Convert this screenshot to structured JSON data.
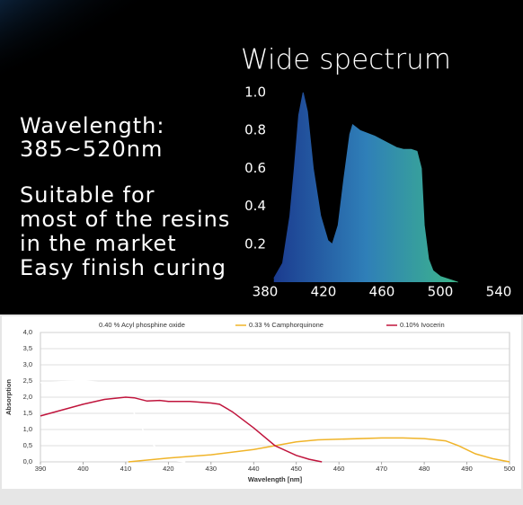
{
  "banner": {
    "lines": [
      "Wavelength:",
      "385~520nm",
      "Suitable for",
      "most of the resins",
      "in the market",
      "Easy finish curing"
    ]
  },
  "chart_data": [
    {
      "type": "area",
      "title": "Wide spectrum",
      "x": [
        386,
        392,
        397,
        400,
        403,
        406,
        409,
        413,
        418,
        423,
        426,
        430,
        434,
        438,
        440,
        445,
        455,
        465,
        470,
        475,
        480,
        484,
        487,
        489,
        492,
        495,
        500,
        512
      ],
      "series": [
        {
          "gradient": [
            "#1b3b8f",
            "#2f7fb8",
            "#3cb58a"
          ],
          "values": [
            0.02,
            0.1,
            0.35,
            0.6,
            0.88,
            1.0,
            0.9,
            0.6,
            0.35,
            0.22,
            0.2,
            0.3,
            0.55,
            0.78,
            0.83,
            0.8,
            0.77,
            0.73,
            0.71,
            0.7,
            0.7,
            0.69,
            0.6,
            0.3,
            0.12,
            0.06,
            0.03,
            0
          ]
        }
      ],
      "xlim": [
        380,
        540
      ],
      "xticks": [
        380,
        420,
        460,
        500,
        540
      ],
      "ylim": [
        0,
        1
      ],
      "yticks": [
        0.2,
        0.4,
        0.6,
        0.8,
        {
          "value": 1,
          "label": "1.0"
        }
      ],
      "grid": false
    },
    {
      "type": "line",
      "xlabel": "Wavelength  [nm]",
      "ylabel": "Absorption",
      "series": [
        {
          "name": "0.40 % Acyl phosphine oxide",
          "color": "#ffffff",
          "x": [
            390,
            395,
            400,
            405,
            408,
            410,
            412,
            414,
            416,
            418,
            420,
            422,
            424
          ],
          "values": [
            2.45,
            2.48,
            2.5,
            2.45,
            2.3,
            2.0,
            1.5,
            1.0,
            0.6,
            0.3,
            0.12,
            0.03,
            0
          ]
        },
        {
          "name": "0.33 % Camphorquinone",
          "color": "#f0b429",
          "x": [
            410.6,
            420,
            430,
            440,
            445,
            450,
            455,
            460,
            470,
            475,
            480,
            485,
            488,
            492,
            496,
            500
          ],
          "values": [
            0,
            0.12,
            0.22,
            0.38,
            0.5,
            0.62,
            0.68,
            0.7,
            0.74,
            0.74,
            0.72,
            0.65,
            0.5,
            0.25,
            0.1,
            0
          ]
        },
        {
          "name": "0.10% Ivocerin",
          "color": "#c0143c",
          "x": [
            390,
            395,
            400,
            405,
            410,
            412,
            415,
            418,
            420,
            425,
            430,
            432,
            435,
            440,
            445,
            450,
            453,
            456
          ],
          "values": [
            1.42,
            1.6,
            1.78,
            1.93,
            2.0,
            1.98,
            1.88,
            1.9,
            1.87,
            1.87,
            1.82,
            1.78,
            1.55,
            1.05,
            0.5,
            0.2,
            0.08,
            0
          ]
        }
      ],
      "xlim": [
        390,
        500
      ],
      "xticks": [
        390,
        400,
        410,
        420,
        430,
        440,
        450,
        460,
        470,
        480,
        490,
        500
      ],
      "ylim": [
        0,
        4
      ],
      "yticks": [
        {
          "value": 0,
          "label": "0,0"
        },
        {
          "value": 0.5,
          "label": "0,5"
        },
        {
          "value": 1,
          "label": "1,0"
        },
        {
          "value": 1.5,
          "label": "1,5"
        },
        {
          "value": 2,
          "label": "2,0"
        },
        {
          "value": 2.5,
          "label": "2,5"
        },
        {
          "value": 3,
          "label": "3,0"
        },
        {
          "value": 3.5,
          "label": "3,5"
        },
        {
          "value": 4,
          "label": "4,0"
        }
      ],
      "grid": true
    }
  ]
}
